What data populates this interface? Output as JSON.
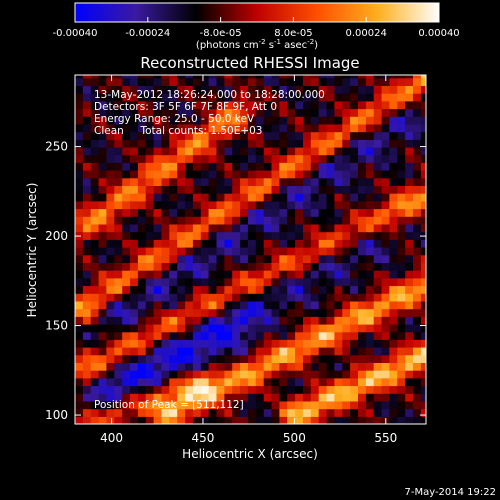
{
  "chart_data": {
    "type": "heatmap",
    "title": "Reconstructed RHESSI Image",
    "xlabel": "Heliocentric X (arcsec)",
    "ylabel": "Heliocentric Y (arcsec)",
    "xlim": [
      380,
      572
    ],
    "ylim": [
      95,
      290
    ],
    "xticks": [
      "400",
      "450",
      "500",
      "550"
    ],
    "yticks": [
      "100",
      "150",
      "200",
      "250"
    ],
    "colorbar": {
      "range": [
        -0.0004,
        0.0004
      ],
      "ticks": [
        "-0.00040",
        "-0.00024",
        "-8.0e-05",
        "8.0e-05",
        "0.00024",
        "0.00040"
      ],
      "unit_parts": [
        "(photons cm",
        "-2",
        " s",
        "-1",
        " asec",
        "-2",
        ")"
      ],
      "colors": [
        "#0000ff",
        "#3a1aa0",
        "#000000",
        "#c00000",
        "#ff5000",
        "#ffb020",
        "#ffffff"
      ]
    },
    "annotations": [
      "13-May-2012 18:26:24.000 to 18:28:00.000",
      "Detectors: 3F 5F 6F 7F 8F 9F, Att 0",
      "Energy Range: 25.0 - 50.0 keV",
      "Clean     Total counts: 1.50E+03"
    ],
    "peak_label": "Position of Peak = [511,112]",
    "stripes": [
      {
        "x0": 385,
        "y0": 160,
        "x1": 575,
        "y1": 290,
        "amp": 0.00038
      },
      {
        "x0": 385,
        "y0": 205,
        "x1": 470,
        "y1": 270,
        "amp": 0.0003
      },
      {
        "x0": 385,
        "y0": 125,
        "x1": 575,
        "y1": 225,
        "amp": 0.00032
      },
      {
        "x0": 430,
        "y0": 100,
        "x1": 575,
        "y1": 175,
        "amp": 0.00036
      },
      {
        "x0": 500,
        "y0": 100,
        "x1": 575,
        "y1": 135,
        "amp": 0.0004
      },
      {
        "x0": 385,
        "y0": 95,
        "x1": 450,
        "y1": 120,
        "amp": 0.0003
      }
    ],
    "troughs": [
      {
        "x0": 400,
        "y0": 160,
        "x1": 560,
        "y1": 270,
        "amp": -0.00034
      },
      {
        "x0": 400,
        "y0": 120,
        "x1": 540,
        "y1": 200,
        "amp": -0.0003
      },
      {
        "x0": 390,
        "y0": 100,
        "x1": 470,
        "y1": 150,
        "amp": -0.00026
      }
    ]
  },
  "footer": {
    "date": "7-May-2014 19:22"
  }
}
